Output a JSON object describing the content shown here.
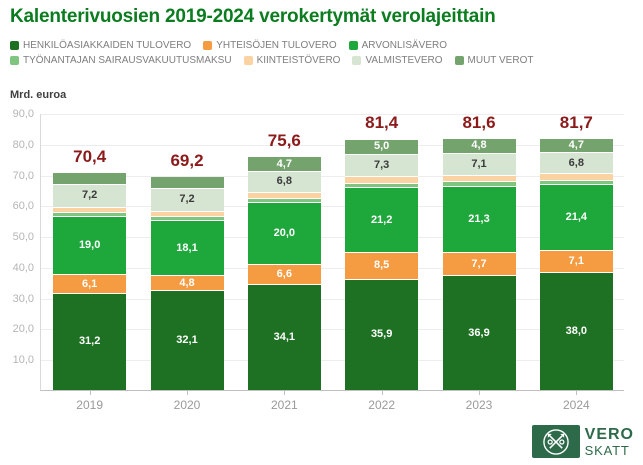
{
  "title": "Kalenterivuosien 2019-2024 verokertymät verolajeittain",
  "y_axis_unit": "Mrd. euroa",
  "colors": {
    "title": "#0b7c1f",
    "totals": "#8c1a1a",
    "legend_text": "#7e7e7e",
    "gridline": "#ededed",
    "axis_line": "#bfbfbf",
    "ytick_text": "#b5b5b5",
    "xtick_text": "#9a9a9a"
  },
  "legend_rows": [
    [
      {
        "label": "HENKILÖASIAKKAIDEN TULOVERO",
        "color": "#1e7023"
      },
      {
        "label": "YHTEISÖJEN TULOVERO",
        "color": "#f59b42"
      },
      {
        "label": "ARVONLISÄVERO",
        "color": "#1ea83c"
      }
    ],
    [
      {
        "label": "TYÖNANTAJAN SAIRAUSVAKUUTUSMAKSU",
        "color": "#7fc580"
      },
      {
        "label": "KIINTEISTÖVERO",
        "color": "#fbd3a3"
      },
      {
        "label": "VALMISTEVERO",
        "color": "#d6e4d2"
      },
      {
        "label": "MUUT VEROT",
        "color": "#74a36e"
      }
    ]
  ],
  "chart_data": {
    "type": "bar",
    "subtype": "stacked",
    "title": "Kalenterivuosien 2019-2024 verokertymät verolajeittain",
    "ylabel": "Mrd. euroa",
    "ylim": [
      0,
      90
    ],
    "ytick_values": [
      90,
      80,
      70,
      60,
      50,
      40,
      30,
      20,
      10
    ],
    "ytick_labels": [
      "90,0",
      "80,0",
      "70,0",
      "60,0",
      "50,0",
      "40,0",
      "30,0",
      "20,0",
      "10,0"
    ],
    "grid": true,
    "legend_position": "top",
    "categories": [
      "2019",
      "2020",
      "2021",
      "2022",
      "2023",
      "2024"
    ],
    "series": [
      {
        "name": "HENKILÖASIAKKAIDEN TULOVERO",
        "color": "#1e7023",
        "label_color": "#ffffff",
        "values": [
          31.2,
          32.1,
          34.1,
          35.9,
          36.9,
          38.0
        ],
        "labels": [
          "31,2",
          "32,1",
          "34,1",
          "35,9",
          "36,9",
          "38,0"
        ]
      },
      {
        "name": "YHTEISÖJEN TULOVERO",
        "color": "#f59b42",
        "label_color": "#ffffff",
        "values": [
          6.1,
          4.8,
          6.6,
          8.5,
          7.7,
          7.1
        ],
        "labels": [
          "6,1",
          "4,8",
          "6,6",
          "8,5",
          "7,7",
          "7,1"
        ]
      },
      {
        "name": "ARVONLISÄVERO",
        "color": "#1ea83c",
        "label_color": "#ffffff",
        "values": [
          19.0,
          18.1,
          20.0,
          21.2,
          21.3,
          21.4
        ],
        "labels": [
          "19,0",
          "18,1",
          "20,0",
          "21,2",
          "21,3",
          "21,4"
        ]
      },
      {
        "name": "TYÖNANTAJAN SAIRAUSVAKUUTUSMAKSU",
        "color": "#7fc580",
        "label_color": "#ffffff",
        "values": [
          1.1,
          1.1,
          1.4,
          1.5,
          1.6,
          1.5
        ],
        "labels": [
          "",
          "",
          "",
          "",
          "",
          ""
        ]
      },
      {
        "name": "KIINTEISTÖVERO",
        "color": "#fbd3a3",
        "label_color": "#3a3a3a",
        "values": [
          1.9,
          1.9,
          2.0,
          2.0,
          2.2,
          2.2
        ],
        "labels": [
          "",
          "",
          "",
          "",
          "",
          ""
        ]
      },
      {
        "name": "VALMISTEVERO",
        "color": "#d6e4d2",
        "label_color": "#3a3a3a",
        "values": [
          7.2,
          7.2,
          6.8,
          7.3,
          7.1,
          6.8
        ],
        "labels": [
          "7,2",
          "7,2",
          "6,8",
          "7,3",
          "7,1",
          "6,8"
        ]
      },
      {
        "name": "MUUT VEROT",
        "color": "#74a36e",
        "label_color": "#ffffff",
        "values": [
          3.9,
          4.0,
          4.7,
          5.0,
          4.8,
          4.7
        ],
        "labels": [
          "",
          "",
          "4,7",
          "5,0",
          "4,8",
          "4,7"
        ]
      }
    ],
    "totals": {
      "values": [
        70.4,
        69.2,
        75.6,
        81.4,
        81.6,
        81.7
      ],
      "labels": [
        "70,4",
        "69,2",
        "75,6",
        "81,4",
        "81,6",
        "81,7"
      ],
      "color": "#8c1a1a"
    }
  },
  "logo": {
    "line1": "VERO",
    "line2": "SKATT",
    "box_color": "#2d6a4a",
    "text_color": "#2d6a4a"
  }
}
